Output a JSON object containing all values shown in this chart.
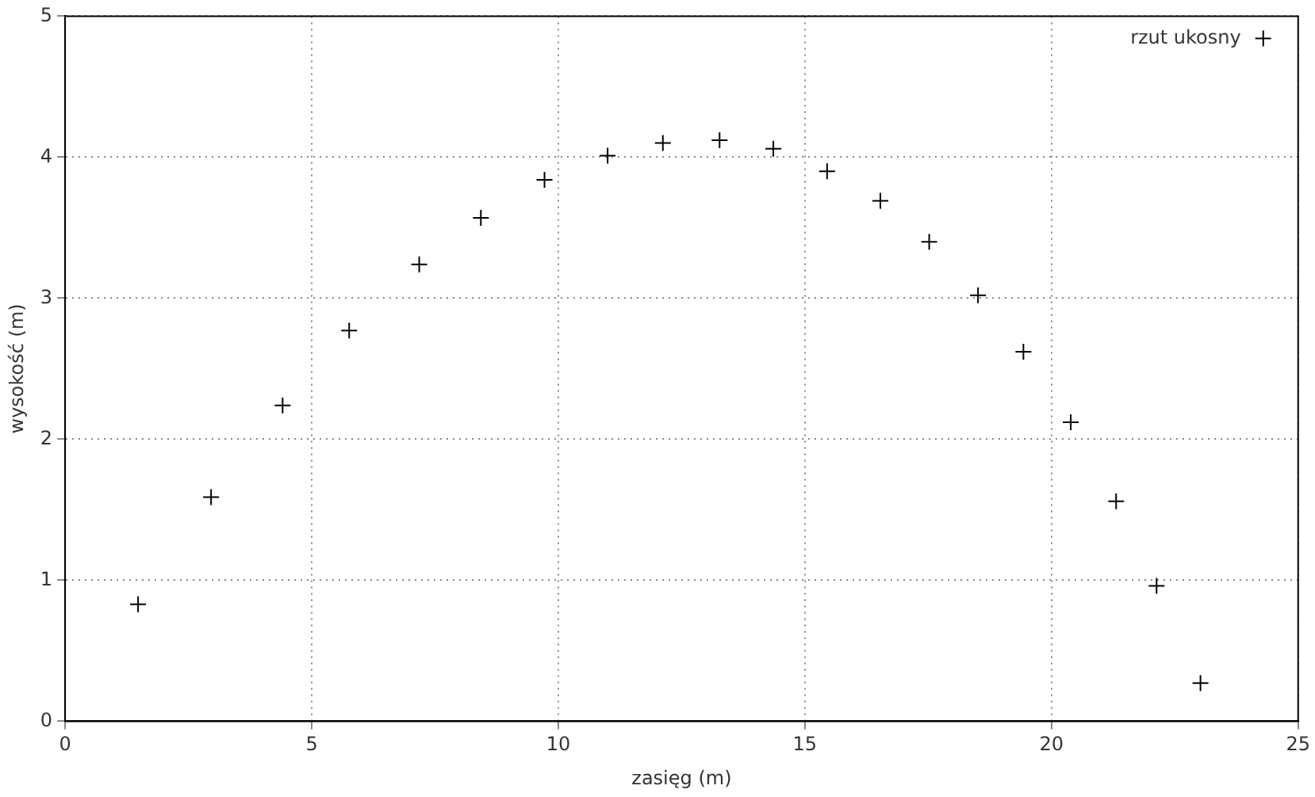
{
  "chart_data": {
    "type": "scatter",
    "xlabel": "zasięg (m)",
    "ylabel": "wysokość (m)",
    "xlim": [
      0,
      25
    ],
    "xticks": [
      0,
      5,
      10,
      15,
      20,
      25
    ],
    "ylim": [
      0,
      5
    ],
    "yticks": [
      0,
      1,
      2,
      3,
      4,
      5
    ],
    "grid": true,
    "legend": "top right",
    "marker": "cross",
    "series": [
      {
        "name": "rzut ukosny",
        "color": "#000000",
        "x": [
          1.48,
          2.96,
          4.41,
          5.76,
          7.18,
          8.43,
          9.72,
          11.0,
          12.12,
          13.27,
          14.36,
          15.45,
          16.53,
          17.52,
          18.51,
          19.43,
          20.39,
          21.31,
          22.13,
          23.02
        ],
        "values": [
          0.83,
          1.59,
          2.24,
          2.77,
          3.24,
          3.57,
          3.84,
          4.01,
          4.1,
          4.12,
          4.06,
          3.9,
          3.69,
          3.4,
          3.02,
          2.62,
          2.12,
          1.56,
          0.96,
          0.27
        ]
      }
    ]
  }
}
